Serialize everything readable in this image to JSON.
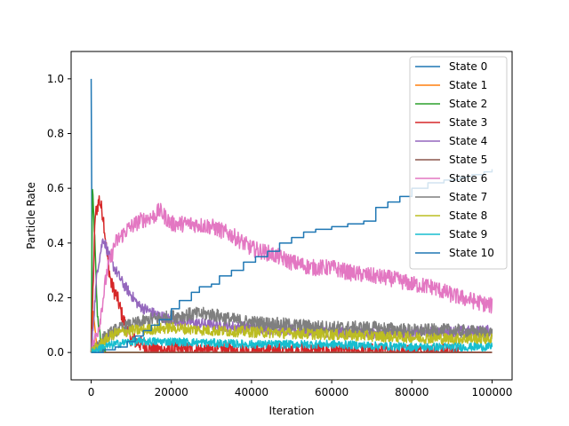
{
  "chart_data": {
    "type": "line",
    "xlabel": "Iteration",
    "ylabel": "Particle Rate",
    "xlim": [
      -5000,
      105000
    ],
    "ylim": [
      -0.1,
      1.1
    ],
    "x_ticks": [
      0,
      20000,
      40000,
      60000,
      80000,
      100000
    ],
    "x_tick_labels": [
      "0",
      "20000",
      "40000",
      "60000",
      "80000",
      "100000"
    ],
    "y_ticks": [
      0.0,
      0.2,
      0.4,
      0.6,
      0.8,
      1.0
    ],
    "y_tick_labels": [
      "0.0",
      "0.2",
      "0.4",
      "0.6",
      "0.8",
      "1.0"
    ],
    "grid": false,
    "legend_position": "top-right",
    "noise_note": "",
    "series": [
      {
        "name": "State 0",
        "color": "#1f77b4",
        "noise": 0.0,
        "x": [
          0,
          300,
          800,
          1500,
          3000,
          100000
        ],
        "y": [
          1.0,
          0.05,
          0.0,
          0.0,
          0.0,
          0.0
        ]
      },
      {
        "name": "State 1",
        "color": "#ff7f0e",
        "noise": 0.0,
        "x": [
          0,
          500,
          1500,
          3000,
          100000
        ],
        "y": [
          0.0,
          0.15,
          0.01,
          0.0,
          0.0
        ]
      },
      {
        "name": "State 2",
        "color": "#2ca02c",
        "noise": 0.02,
        "x": [
          0,
          300,
          800,
          1500,
          2500,
          4000,
          100000
        ],
        "y": [
          0.0,
          0.6,
          0.45,
          0.15,
          0.02,
          0.0,
          0.0
        ]
      },
      {
        "name": "State 3",
        "color": "#d62728",
        "noise": 0.03,
        "x": [
          0,
          1000,
          2000,
          3000,
          4000,
          5000,
          6500,
          8000,
          10000,
          15000,
          100000
        ],
        "y": [
          0.0,
          0.5,
          0.56,
          0.5,
          0.35,
          0.25,
          0.2,
          0.12,
          0.05,
          0.01,
          0.0
        ]
      },
      {
        "name": "State 4",
        "color": "#9467bd",
        "noise": 0.02,
        "x": [
          0,
          1500,
          3000,
          5000,
          8000,
          12000,
          16000,
          20000,
          30000,
          50000,
          70000,
          100000
        ],
        "y": [
          0.0,
          0.3,
          0.42,
          0.33,
          0.25,
          0.17,
          0.14,
          0.12,
          0.1,
          0.08,
          0.07,
          0.08
        ]
      },
      {
        "name": "State 5",
        "color": "#8c564b",
        "noise": 0.0,
        "x": [
          0,
          1000,
          3000,
          100000
        ],
        "y": [
          0.0,
          0.03,
          0.0,
          0.0
        ]
      },
      {
        "name": "State 6",
        "color": "#e377c2",
        "noise": 0.03,
        "x": [
          0,
          2000,
          4000,
          6000,
          9000,
          12000,
          16000,
          17000,
          20000,
          25000,
          30000,
          35000,
          40000,
          45000,
          50000,
          55000,
          60000,
          65000,
          70000,
          75000,
          80000,
          85000,
          90000,
          95000,
          100000
        ],
        "y": [
          0.0,
          0.1,
          0.3,
          0.4,
          0.45,
          0.48,
          0.5,
          0.52,
          0.47,
          0.47,
          0.46,
          0.43,
          0.38,
          0.36,
          0.33,
          0.31,
          0.31,
          0.29,
          0.28,
          0.27,
          0.25,
          0.24,
          0.21,
          0.19,
          0.17
        ]
      },
      {
        "name": "State 7",
        "color": "#7f7f7f",
        "noise": 0.025,
        "x": [
          0,
          3000,
          6000,
          10000,
          15000,
          20000,
          25000,
          30000,
          35000,
          40000,
          50000,
          60000,
          70000,
          80000,
          90000,
          100000
        ],
        "y": [
          0.0,
          0.05,
          0.08,
          0.1,
          0.12,
          0.13,
          0.14,
          0.14,
          0.12,
          0.11,
          0.1,
          0.09,
          0.09,
          0.08,
          0.08,
          0.07
        ]
      },
      {
        "name": "State 8",
        "color": "#bcbd22",
        "noise": 0.02,
        "x": [
          0,
          3000,
          6000,
          10000,
          20000,
          30000,
          50000,
          70000,
          90000,
          100000
        ],
        "y": [
          0.0,
          0.04,
          0.07,
          0.08,
          0.09,
          0.08,
          0.07,
          0.06,
          0.05,
          0.05
        ]
      },
      {
        "name": "State 9",
        "color": "#17becf",
        "noise": 0.015,
        "x": [
          0,
          3000,
          6000,
          10000,
          20000,
          40000,
          60000,
          80000,
          100000
        ],
        "y": [
          0.0,
          0.02,
          0.03,
          0.04,
          0.04,
          0.03,
          0.03,
          0.02,
          0.02
        ]
      },
      {
        "name": "State 10",
        "color": "#1f77b4",
        "noise": 0.0,
        "step": true,
        "x": [
          0,
          3000,
          6000,
          9000,
          11000,
          13000,
          15000,
          17000,
          20000,
          22000,
          25000,
          27000,
          30000,
          32000,
          35000,
          38000,
          41000,
          44000,
          47000,
          50000,
          53000,
          56000,
          60000,
          64000,
          68000,
          71000,
          74000,
          77000,
          80000,
          84000,
          88000,
          92000,
          95000,
          98000,
          100000
        ],
        "y": [
          0.0,
          0.01,
          0.02,
          0.04,
          0.06,
          0.08,
          0.1,
          0.12,
          0.16,
          0.19,
          0.22,
          0.24,
          0.25,
          0.28,
          0.3,
          0.33,
          0.35,
          0.37,
          0.4,
          0.42,
          0.44,
          0.45,
          0.46,
          0.47,
          0.48,
          0.53,
          0.55,
          0.57,
          0.6,
          0.62,
          0.63,
          0.64,
          0.65,
          0.66,
          0.67
        ]
      }
    ]
  }
}
